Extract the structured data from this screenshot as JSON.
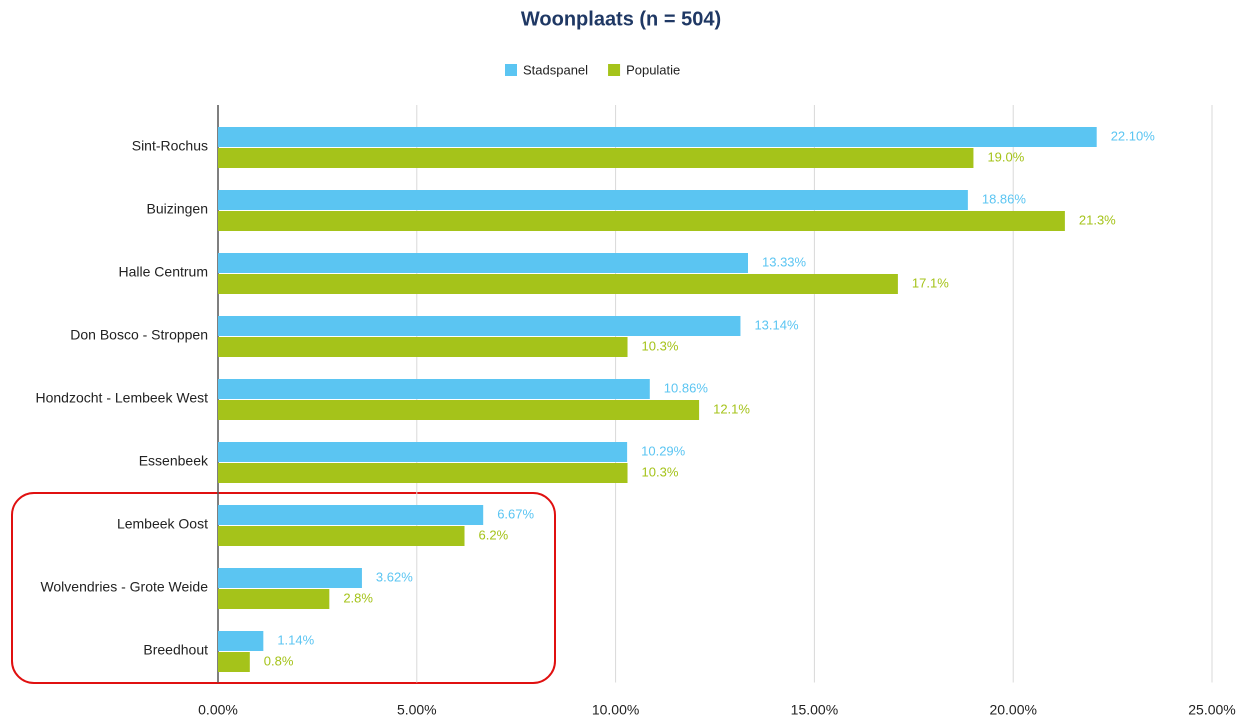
{
  "chart_data": {
    "type": "bar",
    "orientation": "horizontal",
    "title": "Woonplaats (n = 504)",
    "categories": [
      "Sint-Rochus",
      "Buizingen",
      "Halle Centrum",
      "Don Bosco - Stroppen",
      "Hondzocht - Lembeek West",
      "Essenbeek",
      "Lembeek Oost",
      "Wolvendries - Grote Weide",
      "Breedhout"
    ],
    "series": [
      {
        "name": "Stadspanel",
        "color": "#5bc5f2",
        "values": [
          22.1,
          18.86,
          13.33,
          13.14,
          10.86,
          10.29,
          6.67,
          3.62,
          1.14
        ],
        "value_labels": [
          "22.10%",
          "18.86%",
          "13.33%",
          "13.14%",
          "10.86%",
          "10.29%",
          "6.67%",
          "3.62%",
          "1.14%"
        ]
      },
      {
        "name": "Populatie",
        "color": "#a5c31a",
        "values": [
          19.0,
          21.3,
          17.1,
          10.3,
          12.1,
          10.3,
          6.2,
          2.8,
          0.8
        ],
        "value_labels": [
          "19.0%",
          "21.3%",
          "17.1%",
          "10.3%",
          "12.1%",
          "10.3%",
          "6.2%",
          "2.8%",
          "0.8%"
        ]
      }
    ],
    "xlim": [
      0,
      25
    ],
    "xticks": [
      {
        "value": 0,
        "label": "0.00%"
      },
      {
        "value": 5,
        "label": "5.00%"
      },
      {
        "value": 10,
        "label": "10.00%"
      },
      {
        "value": 15,
        "label": "15.00%"
      },
      {
        "value": 20,
        "label": "20.00%"
      },
      {
        "value": 25,
        "label": "25.00%"
      }
    ],
    "grid": true,
    "legend": "top"
  }
}
